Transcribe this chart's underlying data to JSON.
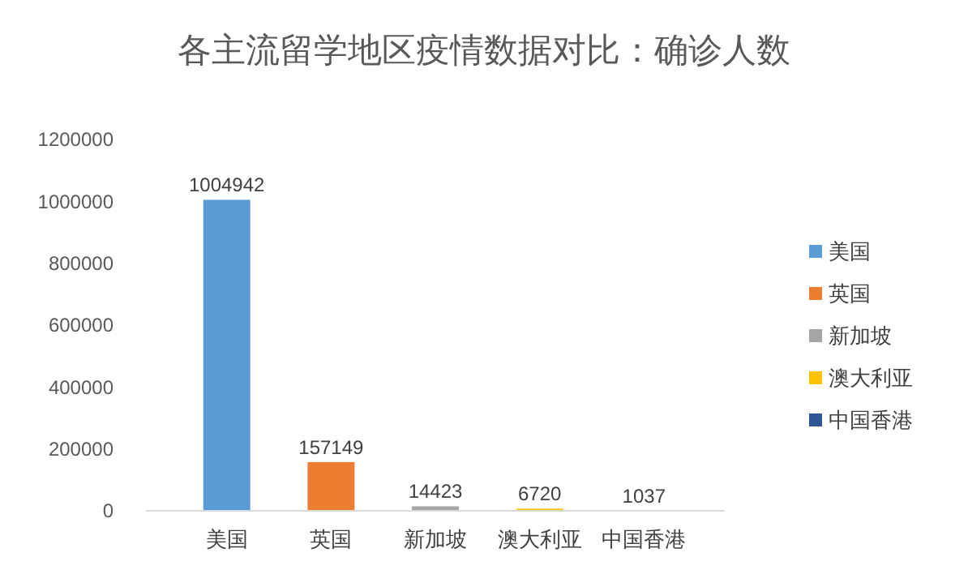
{
  "chart_data": {
    "type": "bar",
    "title": "各主流留学地区疫情数据对比：确诊人数",
    "categories": [
      "美国",
      "英国",
      "新加坡",
      "澳大利亚",
      "中国香港"
    ],
    "series": [
      {
        "name": "美国",
        "color": "#5b9bd5",
        "values": [
          1004942,
          null,
          null,
          null,
          null
        ]
      },
      {
        "name": "英国",
        "color": "#ed7d31",
        "values": [
          null,
          157149,
          null,
          null,
          null
        ]
      },
      {
        "name": "新加坡",
        "color": "#a5a5a5",
        "values": [
          null,
          null,
          14423,
          null,
          null
        ]
      },
      {
        "name": "澳大利亚",
        "color": "#ffc000",
        "values": [
          null,
          null,
          null,
          6720,
          null
        ]
      },
      {
        "name": "中国香港",
        "color": "#2f5597",
        "values": [
          null,
          null,
          null,
          null,
          1037
        ]
      }
    ],
    "ylim": [
      0,
      1200000
    ],
    "yticks": [
      0,
      200000,
      400000,
      600000,
      800000,
      1000000,
      1200000
    ],
    "grid": false,
    "legend": "right",
    "data_labels": true
  }
}
